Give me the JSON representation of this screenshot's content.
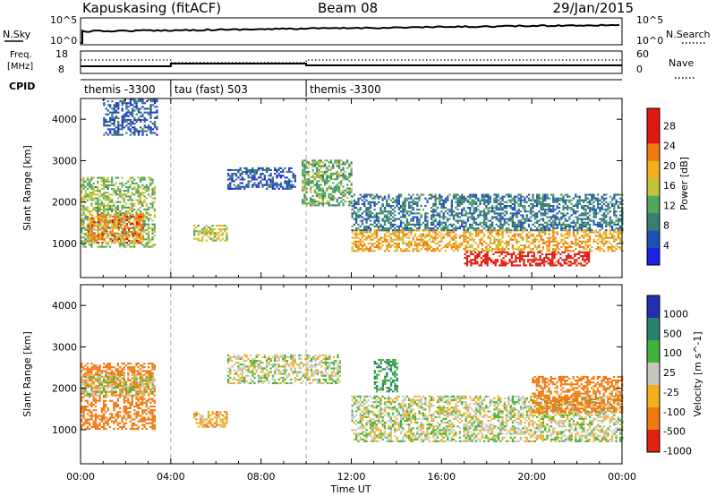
{
  "header": {
    "station": "Kapuskasing (fitACF)",
    "beam": "Beam 08",
    "date": "29/Jan/2015"
  },
  "strips": {
    "nsky_label": "N.Sky",
    "nsky_ticks": [
      "10^5",
      "10^0"
    ],
    "nsearch_label": "N.Search",
    "nsearch_ticks": [
      "10^5",
      "10^0"
    ],
    "freq_label_1": "Freq.",
    "freq_label_2": "[MHz]",
    "freq_ticks": [
      "18",
      "8"
    ],
    "nave_label": "Nave",
    "nave_ticks": [
      "60",
      "0"
    ],
    "cpid_label": "CPID",
    "cpid_segments": [
      {
        "label": "themis -3300",
        "start_hour": 0
      },
      {
        "label": "tau (fast) 503",
        "start_hour": 4
      },
      {
        "label": "themis -3300",
        "start_hour": 10
      }
    ]
  },
  "axes": {
    "x_label": "Time UT",
    "x_ticks": [
      "00:00",
      "04:00",
      "08:00",
      "12:00",
      "16:00",
      "20:00",
      "00:00"
    ],
    "y_label": "Slant Range [km]",
    "y_ticks": [
      "1000",
      "2000",
      "3000",
      "4000"
    ]
  },
  "power_scale": {
    "label": "Power [dB]",
    "ticks": [
      "4",
      "8",
      "12",
      "16",
      "20",
      "24",
      "28"
    ],
    "colors": [
      "#1f1fe0",
      "#1f4fb5",
      "#3b7d73",
      "#4ea85c",
      "#c4c43a",
      "#f2b01e",
      "#f07a12",
      "#e01a10",
      "#e01a10"
    ]
  },
  "velocity_scale": {
    "label": "Velocity [m s^-1]",
    "ticks": [
      "1000",
      "500",
      "100",
      "25",
      "-25",
      "-100",
      "-500",
      "-1000"
    ],
    "colors": [
      "#1f2fb0",
      "#2c8070",
      "#3fb33a",
      "#c8c8c0",
      "#f2b01e",
      "#f07a12",
      "#e02010"
    ]
  },
  "chart_data": [
    {
      "type": "heatmap",
      "title": "Kapuskasing (fitACF) Beam 08 29/Jan/2015",
      "panel": "Power",
      "xlabel": "Time UT",
      "ylabel": "Slant Range [km]",
      "xlim": [
        0,
        24
      ],
      "ylim": [
        180,
        4500
      ],
      "colorbar": {
        "label": "Power [dB]",
        "range": [
          0,
          30
        ]
      },
      "regions": [
        {
          "t": [
            0.0,
            3.3
          ],
          "r": [
            900,
            2600
          ],
          "power_db": 14
        },
        {
          "t": [
            0.3,
            2.8
          ],
          "r": [
            1000,
            1700
          ],
          "power_db": 22
        },
        {
          "t": [
            1.0,
            3.4
          ],
          "r": [
            3600,
            4500
          ],
          "power_db": 6
        },
        {
          "t": [
            5.0,
            6.5
          ],
          "r": [
            1050,
            1450
          ],
          "power_db": 16
        },
        {
          "t": [
            6.5,
            9.5
          ],
          "r": [
            2300,
            2800
          ],
          "power_db": 6
        },
        {
          "t": [
            9.8,
            12.0
          ],
          "r": [
            1900,
            3000
          ],
          "power_db": 12
        },
        {
          "t": [
            12.0,
            24.0
          ],
          "r": [
            800,
            1300
          ],
          "power_db": 20
        },
        {
          "t": [
            12.0,
            24.0
          ],
          "r": [
            1300,
            2200
          ],
          "power_db": 8
        },
        {
          "t": [
            17.0,
            22.5
          ],
          "r": [
            450,
            800
          ],
          "power_db": 28
        }
      ]
    },
    {
      "type": "heatmap",
      "panel": "Velocity",
      "xlabel": "Time UT",
      "ylabel": "Slant Range [km]",
      "xlim": [
        0,
        24
      ],
      "ylim": [
        180,
        4500
      ],
      "colorbar": {
        "label": "Velocity [m s^-1]",
        "range": [
          -1000,
          1000
        ]
      },
      "regions": [
        {
          "t": [
            0.0,
            3.3
          ],
          "r": [
            1000,
            2600
          ],
          "velocity": -300
        },
        {
          "t": [
            0.0,
            3.3
          ],
          "r": [
            1800,
            2300
          ],
          "velocity": 0
        },
        {
          "t": [
            5.0,
            6.5
          ],
          "r": [
            1050,
            1450
          ],
          "velocity": -60
        },
        {
          "t": [
            6.5,
            11.5
          ],
          "r": [
            2100,
            2800
          ],
          "velocity": 0
        },
        {
          "t": [
            12.0,
            24.0
          ],
          "r": [
            700,
            1800
          ],
          "velocity": 0
        },
        {
          "t": [
            13.0,
            14.0
          ],
          "r": [
            1900,
            2700
          ],
          "velocity": 100
        },
        {
          "t": [
            20.0,
            24.0
          ],
          "r": [
            1400,
            2300
          ],
          "velocity": -150
        }
      ]
    }
  ]
}
